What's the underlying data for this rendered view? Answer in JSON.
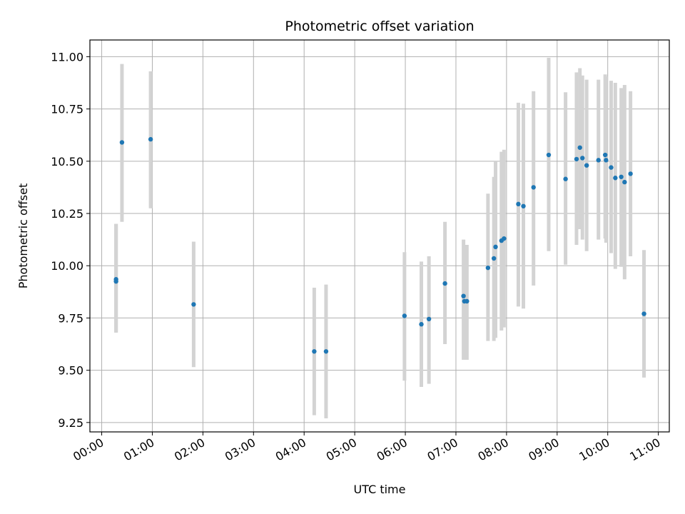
{
  "chart_data": {
    "type": "scatter",
    "title": "Photometric offset variation",
    "xlabel": "UTC time",
    "ylabel": "Photometric offset",
    "xlim": [
      "-00:14",
      "11:13"
    ],
    "ylim": [
      9.205,
      11.08
    ],
    "x_ticks": [
      "00:00",
      "01:00",
      "02:00",
      "03:00",
      "04:00",
      "05:00",
      "06:00",
      "07:00",
      "08:00",
      "09:00",
      "10:00",
      "11:00"
    ],
    "y_ticks": [
      9.25,
      9.5,
      9.75,
      10.0,
      10.25,
      10.5,
      10.75,
      11.0
    ],
    "y_tick_labels": [
      "9.25",
      "9.50",
      "9.75",
      "10.00",
      "10.25",
      "10.50",
      "10.75",
      "11.00"
    ],
    "grid": true,
    "colors": {
      "point": "#1f77b4",
      "errorbar": "#d3d3d3",
      "grid": "#b0b0b0"
    },
    "points": [
      {
        "x": "00:17",
        "y": 9.935,
        "lo": 9.68,
        "hi": 10.2
      },
      {
        "x": "00:17",
        "y": 9.925,
        "lo": 9.68,
        "hi": 10.2
      },
      {
        "x": "00:24",
        "y": 10.59,
        "lo": 10.21,
        "hi": 10.965
      },
      {
        "x": "00:58",
        "y": 10.605,
        "lo": 10.275,
        "hi": 10.93
      },
      {
        "x": "01:49",
        "y": 9.815,
        "lo": 9.515,
        "hi": 10.115
      },
      {
        "x": "04:12",
        "y": 9.59,
        "lo": 9.285,
        "hi": 9.895
      },
      {
        "x": "04:26",
        "y": 9.59,
        "lo": 9.27,
        "hi": 9.91
      },
      {
        "x": "05:59",
        "y": 9.76,
        "lo": 9.45,
        "hi": 10.065
      },
      {
        "x": "06:19",
        "y": 9.72,
        "lo": 9.42,
        "hi": 10.02
      },
      {
        "x": "06:28",
        "y": 9.745,
        "lo": 9.435,
        "hi": 10.045
      },
      {
        "x": "06:47",
        "y": 9.915,
        "lo": 9.625,
        "hi": 10.21
      },
      {
        "x": "07:09",
        "y": 9.855,
        "lo": 9.55,
        "hi": 10.125
      },
      {
        "x": "07:10",
        "y": 9.83,
        "lo": 9.55,
        "hi": 10.1
      },
      {
        "x": "07:13",
        "y": 9.83,
        "lo": 9.55,
        "hi": 10.1
      },
      {
        "x": "07:38",
        "y": 9.99,
        "lo": 9.64,
        "hi": 10.345
      },
      {
        "x": "07:45",
        "y": 10.035,
        "lo": 9.64,
        "hi": 10.425
      },
      {
        "x": "07:47",
        "y": 10.09,
        "lo": 9.655,
        "hi": 10.5
      },
      {
        "x": "07:54",
        "y": 10.12,
        "lo": 9.69,
        "hi": 10.545
      },
      {
        "x": "07:57",
        "y": 10.13,
        "lo": 9.705,
        "hi": 10.555
      },
      {
        "x": "08:14",
        "y": 10.295,
        "lo": 9.805,
        "hi": 10.78
      },
      {
        "x": "08:20",
        "y": 10.285,
        "lo": 9.795,
        "hi": 10.775
      },
      {
        "x": "08:32",
        "y": 10.375,
        "lo": 9.905,
        "hi": 10.835
      },
      {
        "x": "08:50",
        "y": 10.53,
        "lo": 10.07,
        "hi": 10.995
      },
      {
        "x": "09:10",
        "y": 10.415,
        "lo": 10.005,
        "hi": 10.83
      },
      {
        "x": "09:23",
        "y": 10.51,
        "lo": 10.1,
        "hi": 10.925
      },
      {
        "x": "09:27",
        "y": 10.565,
        "lo": 10.175,
        "hi": 10.945
      },
      {
        "x": "09:30",
        "y": 10.515,
        "lo": 10.125,
        "hi": 10.91
      },
      {
        "x": "09:35",
        "y": 10.48,
        "lo": 10.07,
        "hi": 10.89
      },
      {
        "x": "09:49",
        "y": 10.505,
        "lo": 10.125,
        "hi": 10.89
      },
      {
        "x": "09:57",
        "y": 10.53,
        "lo": 10.13,
        "hi": 10.915
      },
      {
        "x": "09:58",
        "y": 10.505,
        "lo": 10.11,
        "hi": 10.905
      },
      {
        "x": "10:04",
        "y": 10.47,
        "lo": 10.06,
        "hi": 10.885
      },
      {
        "x": "10:09",
        "y": 10.42,
        "lo": 9.985,
        "hi": 10.875
      },
      {
        "x": "10:16",
        "y": 10.425,
        "lo": 9.995,
        "hi": 10.85
      },
      {
        "x": "10:20",
        "y": 10.4,
        "lo": 9.935,
        "hi": 10.865
      },
      {
        "x": "10:27",
        "y": 10.44,
        "lo": 10.045,
        "hi": 10.835
      },
      {
        "x": "10:43",
        "y": 9.77,
        "lo": 9.465,
        "hi": 10.075
      }
    ]
  }
}
